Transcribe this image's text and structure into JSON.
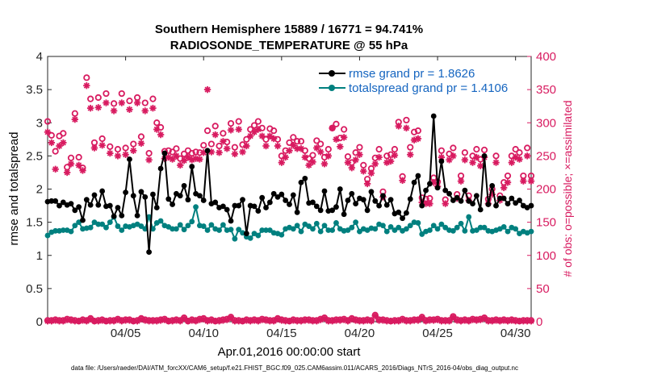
{
  "chart_data": {
    "type": "line",
    "title_line1": "Southern Hemisphere 15889 / 16771 = 94.741%",
    "title_line2": "RADIOSONDE_TEMPERATURE @ 55 hPa",
    "xlabel": "Apr.01,2016 00:00:00 start",
    "ylabel_left": "rmse and totalspread",
    "ylabel_right": "# of obs: o=possible; ×=assimilated",
    "footer": "data file: /Users/raeder/DAI/ATM_forcXX/CAM6_setup/f.e21.FHIST_BGC.f09_025.CAM6assim.011/ACARS_2016/Diags_NTrS_2016-04/obs_diag_output.nc",
    "xlim": [
      0.5,
      31.5
    ],
    "ylim_left": [
      0,
      4
    ],
    "ylim_right": [
      0,
      400
    ],
    "yticks_left": [
      "0",
      "0.5",
      "1",
      "1.5",
      "2",
      "2.5",
      "3",
      "3.5",
      "4"
    ],
    "yticks_right": [
      "0",
      "50",
      "100",
      "150",
      "200",
      "250",
      "300",
      "350",
      "400"
    ],
    "xticks": [
      {
        "value": 5.5,
        "label": "04/05"
      },
      {
        "value": 10.5,
        "label": "04/10"
      },
      {
        "value": 15.5,
        "label": "04/15"
      },
      {
        "value": 20.5,
        "label": "04/20"
      },
      {
        "value": 25.5,
        "label": "04/25"
      },
      {
        "value": 30.5,
        "label": "04/30"
      }
    ],
    "colors": {
      "rmse": "#000000",
      "spread": "#00807f",
      "obs": "#d81b60",
      "legend_text": "#1565c0"
    },
    "legend": [
      {
        "name": "rmse grand pr = 1.8626",
        "series": "rmse"
      },
      {
        "name": "totalspread grand pr = 1.4106",
        "series": "spread"
      }
    ],
    "series_rmse": {
      "name": "rmse",
      "x": [
        0.5,
        0.75,
        1,
        1.25,
        1.5,
        1.75,
        2,
        2.25,
        2.5,
        2.75,
        3,
        3.25,
        3.5,
        3.75,
        4,
        4.25,
        4.5,
        4.75,
        5,
        5.25,
        5.5,
        5.75,
        6,
        6.25,
        6.5,
        6.75,
        7,
        7.25,
        7.5,
        7.75,
        8,
        8.25,
        8.5,
        8.75,
        9,
        9.25,
        9.5,
        9.75,
        10,
        10.25,
        10.5,
        10.75,
        11,
        11.25,
        11.5,
        11.75,
        12,
        12.25,
        12.5,
        12.75,
        13,
        13.25,
        13.5,
        13.75,
        14,
        14.25,
        14.5,
        14.75,
        15,
        15.25,
        15.5,
        15.75,
        16,
        16.25,
        16.5,
        16.75,
        17,
        17.25,
        17.5,
        17.75,
        18,
        18.25,
        18.5,
        18.75,
        19,
        19.25,
        19.5,
        19.75,
        20,
        20.25,
        20.5,
        20.75,
        21,
        21.25,
        21.5,
        21.75,
        22,
        22.25,
        22.5,
        22.75,
        23,
        23.25,
        23.5,
        23.75,
        24,
        24.25,
        24.5,
        24.75,
        25,
        25.25,
        25.5,
        25.75,
        26,
        26.25,
        26.5,
        26.75,
        27,
        27.25,
        27.5,
        27.75,
        28,
        28.25,
        28.5,
        28.75,
        29,
        29.25,
        29.5,
        29.75,
        30,
        30.25,
        30.5,
        30.75,
        31,
        31.25,
        31.5
      ],
      "values": [
        1.81,
        1.82,
        1.82,
        1.75,
        1.8,
        1.76,
        1.78,
        1.68,
        1.73,
        1.53,
        1.84,
        1.76,
        1.91,
        1.76,
        1.97,
        1.74,
        1.75,
        1.59,
        1.72,
        1.6,
        1.95,
        2.45,
        1.9,
        1.6,
        1.96,
        1.88,
        1.05,
        1.92,
        1.72,
        2.31,
        2.54,
        1.85,
        1.77,
        1.93,
        1.9,
        2.05,
        1.84,
        2.34,
        1.93,
        1.9,
        1.83,
        2.58,
        1.78,
        1.8,
        1.72,
        1.74,
        1.69,
        1.52,
        1.75,
        1.75,
        1.84,
        1.33,
        1.75,
        1.74,
        1.67,
        1.87,
        1.72,
        1.8,
        1.93,
        1.88,
        1.92,
        1.83,
        1.77,
        1.91,
        1.65,
        2.1,
        2.16,
        1.79,
        1.8,
        1.74,
        1.68,
        1.97,
        1.67,
        1.68,
        1.73,
        2.0,
        1.62,
        1.83,
        1.93,
        1.78,
        1.86,
        1.84,
        1.68,
        1.96,
        1.82,
        1.75,
        1.9,
        1.76,
        1.84,
        1.63,
        1.65,
        1.56,
        1.64,
        1.85,
        2.1,
        2.2,
        1.75,
        1.98,
        2.08,
        3.1,
        2.02,
        2.42,
        1.98,
        1.93,
        1.83,
        1.87,
        1.82,
        1.98,
        1.82,
        1.78,
        1.9,
        1.69,
        2.5,
        1.77,
        2.05,
        1.75,
        1.86,
        1.86,
        1.78,
        1.86,
        1.79,
        1.83,
        1.75,
        1.72,
        1.75
      ]
    },
    "series_spread": {
      "name": "totalspread",
      "x": [
        0.5,
        0.75,
        1,
        1.25,
        1.5,
        1.75,
        2,
        2.25,
        2.5,
        2.75,
        3,
        3.25,
        3.5,
        3.75,
        4,
        4.25,
        4.5,
        4.75,
        5,
        5.25,
        5.5,
        5.75,
        6,
        6.25,
        6.5,
        6.75,
        7,
        7.25,
        7.5,
        7.75,
        8,
        8.25,
        8.5,
        8.75,
        9,
        9.25,
        9.5,
        9.75,
        10,
        10.25,
        10.5,
        10.75,
        11,
        11.25,
        11.5,
        11.75,
        12,
        12.25,
        12.5,
        12.75,
        13,
        13.25,
        13.5,
        13.75,
        14,
        14.25,
        14.5,
        14.75,
        15,
        15.25,
        15.5,
        15.75,
        16,
        16.25,
        16.5,
        16.75,
        17,
        17.25,
        17.5,
        17.75,
        18,
        18.25,
        18.5,
        18.75,
        19,
        19.25,
        19.5,
        19.75,
        20,
        20.25,
        20.5,
        20.75,
        21,
        21.25,
        21.5,
        21.75,
        22,
        22.25,
        22.5,
        22.75,
        23,
        23.25,
        23.5,
        23.75,
        24,
        24.25,
        24.5,
        24.75,
        25,
        25.25,
        25.5,
        25.75,
        26,
        26.25,
        26.5,
        26.75,
        27,
        27.25,
        27.5,
        27.75,
        28,
        28.25,
        28.5,
        28.75,
        29,
        29.25,
        29.5,
        29.75,
        30,
        30.25,
        30.5,
        30.75,
        31,
        31.25,
        31.5
      ],
      "values": [
        1.3,
        1.35,
        1.37,
        1.37,
        1.38,
        1.38,
        1.36,
        1.45,
        1.5,
        1.4,
        1.41,
        1.42,
        1.5,
        1.47,
        1.47,
        1.42,
        1.5,
        1.58,
        1.44,
        1.38,
        1.44,
        1.43,
        1.45,
        1.47,
        1.44,
        1.4,
        1.58,
        1.4,
        1.49,
        1.52,
        1.45,
        1.43,
        1.4,
        1.4,
        1.46,
        1.39,
        1.45,
        1.51,
        1.73,
        1.45,
        1.44,
        1.38,
        1.46,
        1.4,
        1.38,
        1.46,
        1.38,
        1.39,
        1.25,
        1.39,
        1.34,
        1.28,
        1.26,
        1.33,
        1.3,
        1.38,
        1.38,
        1.38,
        1.34,
        1.33,
        1.31,
        1.4,
        1.42,
        1.4,
        1.45,
        1.36,
        1.47,
        1.44,
        1.4,
        1.48,
        1.36,
        1.45,
        1.38,
        1.38,
        1.49,
        1.4,
        1.37,
        1.38,
        1.42,
        1.5,
        1.36,
        1.4,
        1.38,
        1.41,
        1.4,
        1.47,
        1.45,
        1.36,
        1.43,
        1.38,
        1.42,
        1.37,
        1.4,
        1.45,
        1.5,
        1.49,
        1.32,
        1.36,
        1.38,
        1.45,
        1.4,
        1.47,
        1.42,
        1.38,
        1.37,
        1.42,
        1.48,
        1.37,
        1.58,
        1.37,
        1.38,
        1.42,
        1.42,
        1.37,
        1.36,
        1.38,
        1.4,
        1.43,
        1.36,
        1.42,
        1.4,
        1.33,
        1.36,
        1.34,
        1.36
      ]
    },
    "series_possible": {
      "name": "possible (o)",
      "x": [
        0.5,
        0.75,
        1,
        1.25,
        1.5,
        1.75,
        2,
        2.25,
        2.5,
        2.75,
        3,
        3.25,
        3.5,
        3.75,
        4,
        4.25,
        4.5,
        4.75,
        5,
        5.25,
        5.5,
        5.75,
        6,
        6.25,
        6.5,
        6.75,
        7,
        7.25,
        7.5,
        7.75,
        8,
        8.25,
        8.5,
        8.75,
        9,
        9.25,
        9.5,
        9.75,
        10,
        10.25,
        10.5,
        10.75,
        11,
        11.25,
        11.5,
        11.75,
        12,
        12.25,
        12.5,
        12.75,
        13,
        13.25,
        13.5,
        13.75,
        14,
        14.25,
        14.5,
        14.75,
        15,
        15.25,
        15.5,
        15.75,
        16,
        16.25,
        16.5,
        16.75,
        17,
        17.25,
        17.5,
        17.75,
        18,
        18.25,
        18.5,
        18.75,
        19,
        19.25,
        19.5,
        19.75,
        20,
        20.25,
        20.5,
        20.75,
        21,
        21.25,
        21.5,
        21.75,
        22,
        22.25,
        22.5,
        22.75,
        23,
        23.25,
        23.5,
        23.75,
        24,
        24.25,
        24.5,
        24.75,
        25,
        25.25,
        25.5,
        25.75,
        26,
        26.25,
        26.5,
        26.75,
        27,
        27.25,
        27.5,
        27.75,
        28,
        28.25,
        28.5,
        28.75,
        29,
        29.25,
        29.5,
        29.75,
        30,
        30.25,
        30.5,
        30.75,
        31,
        31.25,
        31.5
      ],
      "values": [
        302,
        281,
        257,
        280,
        284,
        233,
        247,
        314,
        248,
        232,
        368,
        336,
        270,
        338,
        276,
        344,
        264,
        329,
        260,
        344,
        262,
        333,
        268,
        338,
        279,
        330,
        254,
        336,
        300,
        293,
        257,
        258,
        256,
        261,
        246,
        253,
        258,
        254,
        256,
        255,
        266,
        288,
        268,
        295,
        265,
        284,
        271,
        299,
        263,
        302,
        267,
        275,
        290,
        296,
        302,
        292,
        275,
        291,
        288,
        275,
        250,
        258,
        270,
        278,
        272,
        272,
        258,
        246,
        251,
        273,
        268,
        248,
        260,
        292,
        298,
        277,
        290,
        249,
        240,
        255,
        263,
        236,
        215,
        231,
        247,
        260,
        196,
        250,
        252,
        260,
        301,
        219,
        304,
        263,
        286,
        288,
        187,
        185,
        186,
        217,
        211,
        258,
        184,
        253,
        262,
        192,
        220,
        255,
        190,
        250,
        260,
        245,
        259,
        185,
        200,
        250,
        190,
        210,
        220,
        250,
        260,
        255,
        220,
        262,
        220
      ]
    },
    "series_assimilated": {
      "name": "assimilated (×)",
      "x": [
        0.5,
        0.75,
        1,
        1.25,
        1.5,
        1.75,
        2,
        2.25,
        2.5,
        2.75,
        3,
        3.25,
        3.5,
        3.75,
        4,
        4.25,
        4.5,
        4.75,
        5,
        5.25,
        5.5,
        5.75,
        6,
        6.25,
        6.5,
        6.75,
        7,
        7.25,
        7.5,
        7.75,
        8,
        8.25,
        8.5,
        8.75,
        9,
        9.25,
        9.5,
        9.75,
        10,
        10.25,
        10.5,
        10.75,
        11,
        11.25,
        11.5,
        11.75,
        12,
        12.25,
        12.5,
        12.75,
        13,
        13.25,
        13.5,
        13.75,
        14,
        14.25,
        14.5,
        14.75,
        15,
        15.25,
        15.5,
        15.75,
        16,
        16.25,
        16.5,
        16.75,
        17,
        17.25,
        17.5,
        17.75,
        18,
        18.25,
        18.5,
        18.75,
        19,
        19.25,
        19.5,
        19.75,
        20,
        20.25,
        20.5,
        20.75,
        21,
        21.25,
        21.5,
        21.75,
        22,
        22.25,
        22.5,
        22.75,
        23,
        23.25,
        23.5,
        23.75,
        24,
        24.25,
        24.5,
        24.75,
        25,
        25.25,
        25.5,
        25.75,
        26,
        26.25,
        26.5,
        26.75,
        27,
        27.25,
        27.5,
        27.75,
        28,
        28.25,
        28.5,
        28.75,
        29,
        29.25,
        29.5,
        29.75,
        30,
        30.25,
        30.5,
        30.75,
        31,
        31.25,
        31.5
      ],
      "values": [
        286,
        270,
        230,
        265,
        270,
        225,
        238,
        305,
        236,
        228,
        356,
        322,
        262,
        323,
        266,
        330,
        254,
        318,
        250,
        330,
        252,
        320,
        258,
        330,
        269,
        318,
        244,
        322,
        290,
        282,
        246,
        248,
        245,
        250,
        236,
        243,
        248,
        244,
        246,
        245,
        255,
        350,
        256,
        282,
        255,
        272,
        261,
        289,
        253,
        290,
        256,
        265,
        280,
        286,
        290,
        280,
        265,
        280,
        276,
        265,
        240,
        248,
        258,
        266,
        261,
        261,
        248,
        236,
        241,
        262,
        256,
        238,
        250,
        292,
        275,
        264,
        278,
        240,
        232,
        244,
        252,
        227,
        208,
        224,
        238,
        248,
        188,
        240,
        242,
        251,
        295,
        213,
        292,
        252,
        274,
        276,
        180,
        178,
        178,
        210,
        204,
        248,
        178,
        244,
        250,
        186,
        212,
        244,
        183,
        240,
        248,
        235,
        248,
        178,
        192,
        240,
        183,
        202,
        210,
        240,
        248,
        245,
        212,
        250,
        212
      ]
    },
    "series_possible_bottom": {
      "name": "possible near zero (o)",
      "values": [
        2,
        2,
        3,
        2,
        2,
        4,
        3,
        2,
        1,
        3,
        2,
        5,
        1,
        2,
        3,
        1,
        2,
        2,
        4,
        2,
        3,
        3,
        1,
        2,
        5,
        3,
        2,
        2,
        2,
        3,
        4,
        1,
        2,
        3,
        2,
        6,
        1,
        3,
        2,
        4,
        5,
        2,
        3,
        1,
        2,
        3,
        4,
        7,
        2,
        2,
        1,
        3,
        2,
        3,
        2,
        4,
        3,
        2,
        2,
        5,
        3,
        2,
        1,
        3,
        2,
        2,
        3,
        3,
        2,
        2,
        4,
        6,
        2,
        2,
        3,
        3,
        4,
        2,
        5,
        3,
        2,
        2,
        3,
        2,
        10,
        3,
        3,
        2,
        1,
        2,
        2,
        4,
        2,
        2,
        3,
        3,
        7,
        2,
        3,
        3,
        4,
        2,
        2,
        2,
        8,
        3,
        2,
        3,
        2,
        4,
        3,
        4,
        6,
        2,
        2,
        3,
        2,
        3,
        2,
        3,
        2,
        1,
        2,
        2,
        2
      ]
    },
    "series_assimilated_bottom": {
      "name": "assimilated near zero (×)",
      "values": [
        1,
        1,
        2,
        1,
        1,
        3,
        2,
        1,
        1,
        2,
        1,
        4,
        1,
        1,
        2,
        1,
        1,
        1,
        3,
        1,
        2,
        2,
        1,
        1,
        4,
        2,
        1,
        1,
        1,
        2,
        3,
        1,
        1,
        2,
        1,
        5,
        1,
        2,
        1,
        3,
        4,
        1,
        2,
        1,
        1,
        2,
        3,
        6,
        1,
        1,
        1,
        2,
        1,
        2,
        1,
        3,
        2,
        1,
        1,
        4,
        2,
        1,
        1,
        2,
        1,
        1,
        2,
        2,
        1,
        1,
        3,
        5,
        1,
        1,
        2,
        2,
        3,
        1,
        4,
        2,
        1,
        1,
        2,
        1,
        9,
        2,
        2,
        1,
        1,
        1,
        1,
        3,
        1,
        1,
        2,
        2,
        6,
        1,
        2,
        2,
        3,
        1,
        1,
        1,
        7,
        2,
        1,
        2,
        1,
        3,
        2,
        3,
        5,
        1,
        1,
        2,
        1,
        2,
        1,
        2,
        1,
        1,
        1,
        1,
        1
      ]
    }
  }
}
